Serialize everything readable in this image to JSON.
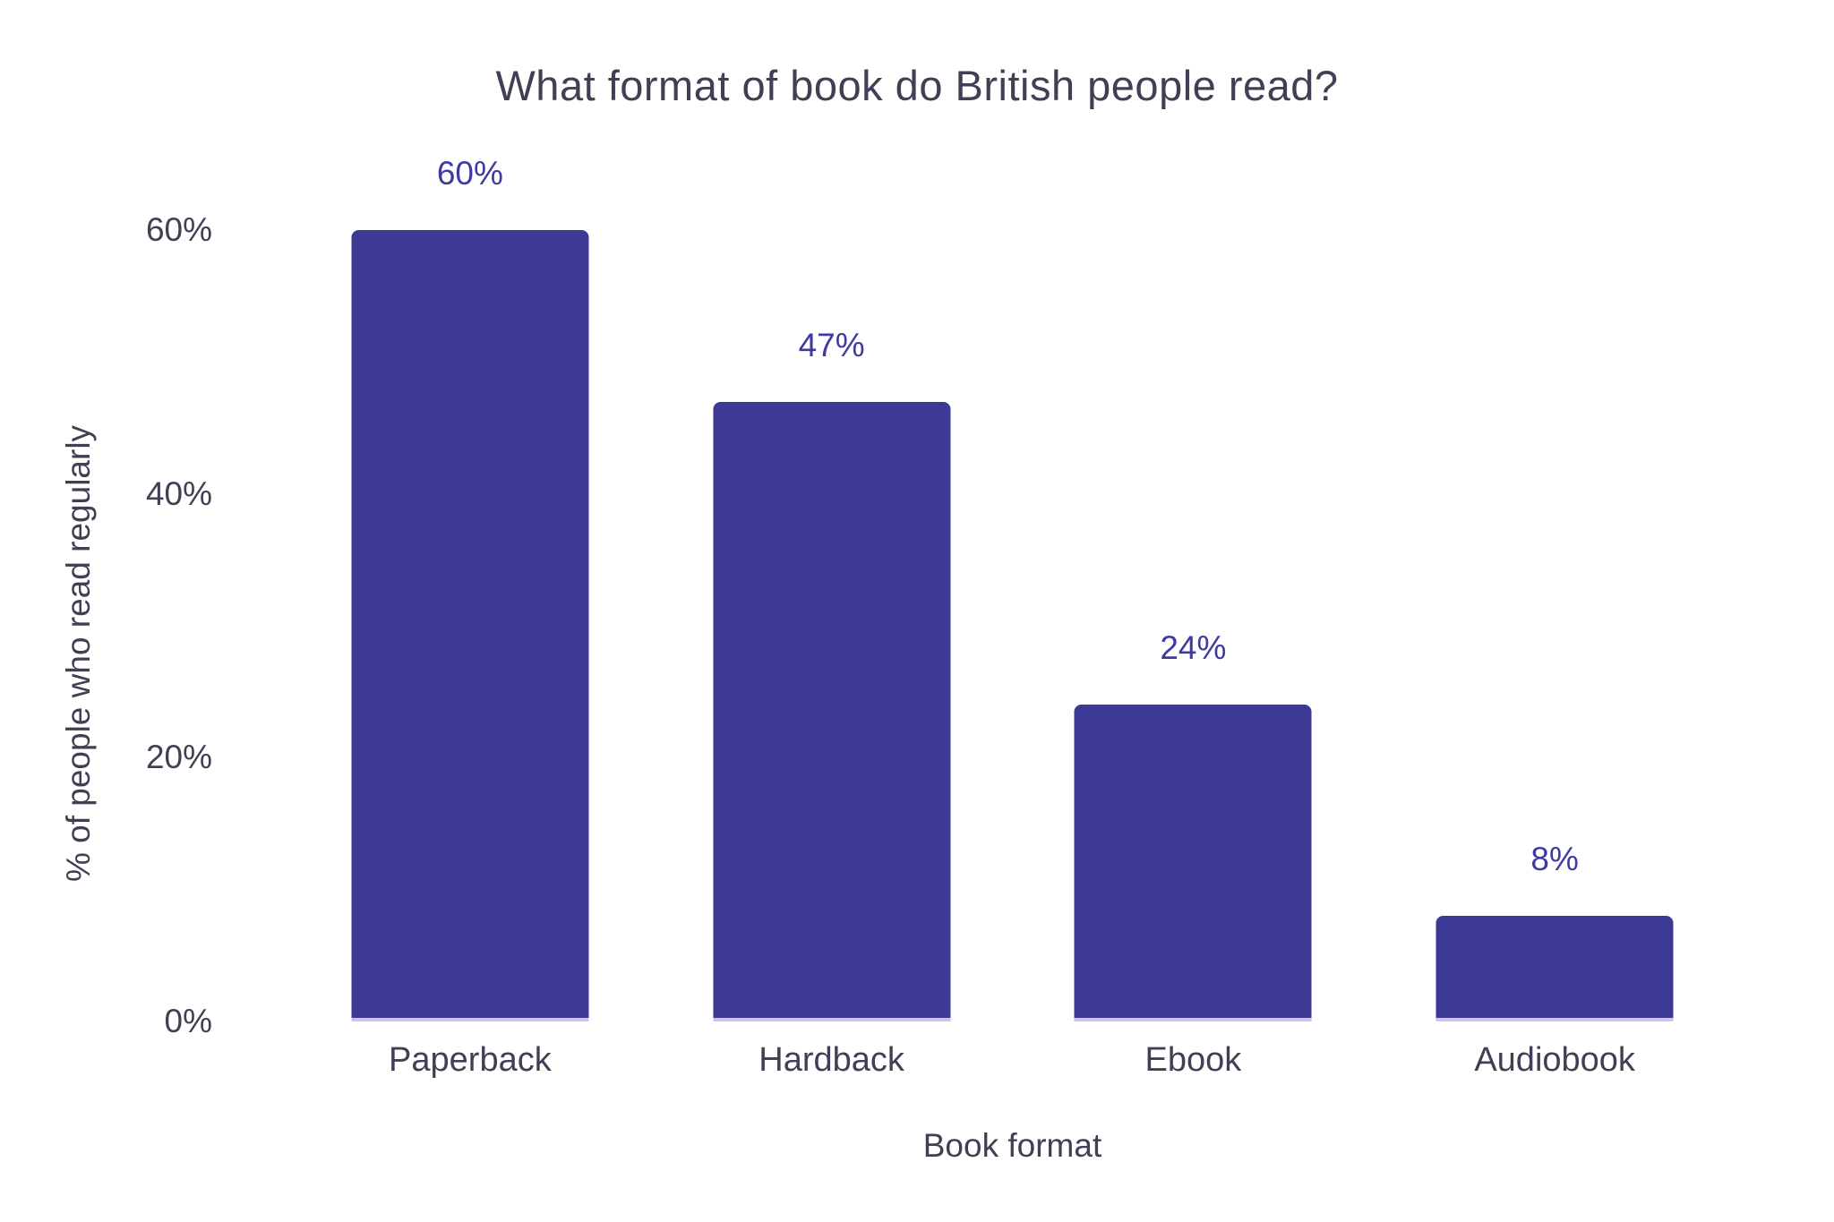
{
  "chart_data": {
    "type": "bar",
    "title": "What format of book do British people read?",
    "xlabel": "Book format",
    "ylabel": "% of people who read regularly",
    "categories": [
      "Paperback",
      "Hardback",
      "Ebook",
      "Audiobook"
    ],
    "values": [
      60,
      47,
      24,
      8
    ],
    "value_labels": [
      "60%",
      "47%",
      "24%",
      "8%"
    ],
    "y_ticks": [
      {
        "value": 0,
        "label": "0%"
      },
      {
        "value": 20,
        "label": "20%"
      },
      {
        "value": 40,
        "label": "40%"
      },
      {
        "value": 60,
        "label": "60%"
      }
    ],
    "ylim": [
      0,
      60
    ],
    "grid": false,
    "legend": "none",
    "colors": {
      "bar": "#3D3A96",
      "value_label": "#3E3AA2",
      "text": "#423F55",
      "background": "#FFFFFF"
    }
  }
}
